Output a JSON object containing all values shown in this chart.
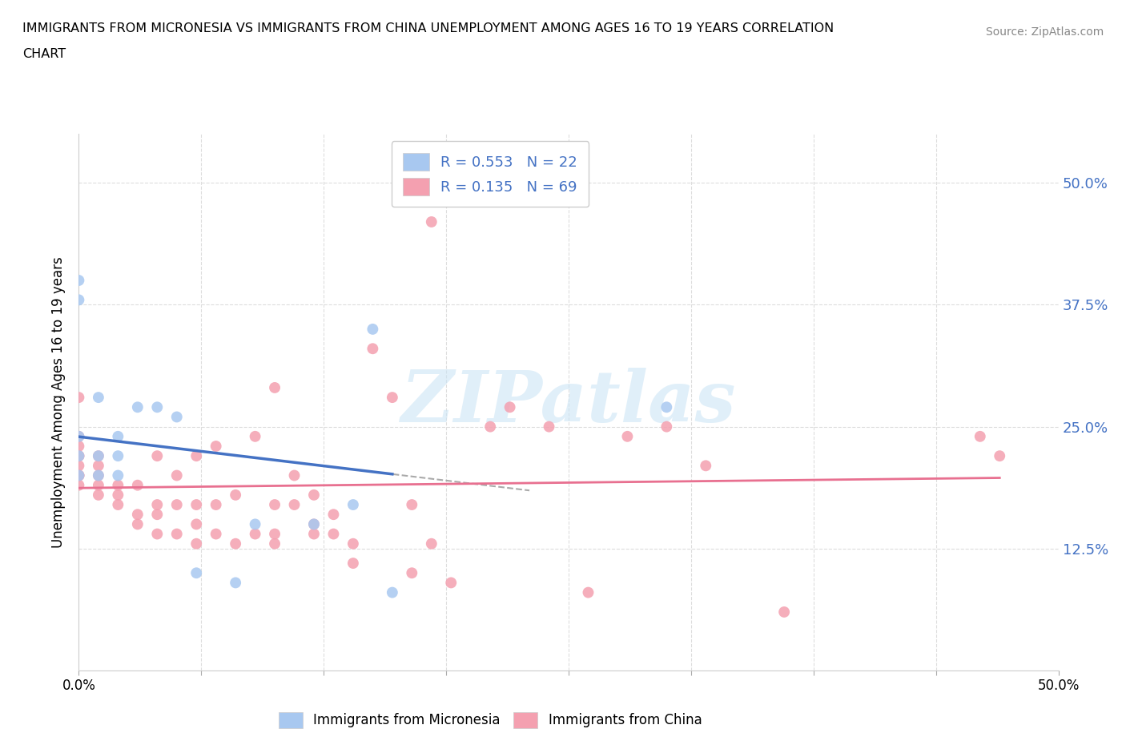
{
  "title_line1": "IMMIGRANTS FROM MICRONESIA VS IMMIGRANTS FROM CHINA UNEMPLOYMENT AMONG AGES 16 TO 19 YEARS CORRELATION",
  "title_line2": "CHART",
  "source_text": "Source: ZipAtlas.com",
  "ylabel": "Unemployment Among Ages 16 to 19 years",
  "xlim": [
    0.0,
    0.5
  ],
  "ylim": [
    0.0,
    0.55
  ],
  "yticks": [
    0.0,
    0.125,
    0.25,
    0.375,
    0.5
  ],
  "ytick_labels": [
    "",
    "12.5%",
    "25.0%",
    "37.5%",
    "50.0%"
  ],
  "xticks": [
    0.0,
    0.0625,
    0.125,
    0.1875,
    0.25,
    0.3125,
    0.375,
    0.4375,
    0.5
  ],
  "xtick_labels": [
    "0.0%",
    "",
    "",
    "",
    "",
    "",
    "",
    "",
    "50.0%"
  ],
  "micronesia_color": "#a8c8f0",
  "china_color": "#f4a0b0",
  "micronesia_line_color": "#4472c4",
  "china_line_color": "#e87090",
  "R_micronesia": 0.553,
  "N_micronesia": 22,
  "R_china": 0.135,
  "N_china": 69,
  "legend_label_micronesia": "Immigrants from Micronesia",
  "legend_label_china": "Immigrants from China",
  "watermark": "ZIPatlas",
  "micronesia_x": [
    0.0,
    0.0,
    0.0,
    0.0,
    0.0,
    0.01,
    0.01,
    0.01,
    0.02,
    0.02,
    0.02,
    0.03,
    0.04,
    0.05,
    0.06,
    0.08,
    0.09,
    0.12,
    0.14,
    0.15,
    0.16,
    0.3
  ],
  "micronesia_y": [
    0.2,
    0.22,
    0.24,
    0.38,
    0.4,
    0.2,
    0.22,
    0.28,
    0.2,
    0.22,
    0.24,
    0.27,
    0.27,
    0.26,
    0.1,
    0.09,
    0.15,
    0.15,
    0.17,
    0.35,
    0.08,
    0.27
  ],
  "china_x": [
    0.0,
    0.0,
    0.0,
    0.0,
    0.0,
    0.0,
    0.0,
    0.0,
    0.0,
    0.0,
    0.01,
    0.01,
    0.01,
    0.01,
    0.01,
    0.02,
    0.02,
    0.02,
    0.03,
    0.03,
    0.03,
    0.04,
    0.04,
    0.04,
    0.04,
    0.05,
    0.05,
    0.05,
    0.06,
    0.06,
    0.06,
    0.06,
    0.07,
    0.07,
    0.07,
    0.08,
    0.08,
    0.09,
    0.09,
    0.1,
    0.1,
    0.1,
    0.1,
    0.11,
    0.11,
    0.12,
    0.12,
    0.12,
    0.13,
    0.13,
    0.14,
    0.14,
    0.15,
    0.16,
    0.17,
    0.17,
    0.18,
    0.18,
    0.19,
    0.21,
    0.22,
    0.24,
    0.26,
    0.28,
    0.3,
    0.32,
    0.36,
    0.46,
    0.47
  ],
  "china_y": [
    0.19,
    0.2,
    0.2,
    0.2,
    0.21,
    0.22,
    0.22,
    0.23,
    0.24,
    0.28,
    0.18,
    0.19,
    0.2,
    0.21,
    0.22,
    0.17,
    0.18,
    0.19,
    0.15,
    0.16,
    0.19,
    0.14,
    0.16,
    0.17,
    0.22,
    0.14,
    0.17,
    0.2,
    0.13,
    0.15,
    0.17,
    0.22,
    0.14,
    0.17,
    0.23,
    0.13,
    0.18,
    0.14,
    0.24,
    0.13,
    0.14,
    0.17,
    0.29,
    0.17,
    0.2,
    0.14,
    0.15,
    0.18,
    0.14,
    0.16,
    0.11,
    0.13,
    0.33,
    0.28,
    0.1,
    0.17,
    0.13,
    0.46,
    0.09,
    0.25,
    0.27,
    0.25,
    0.08,
    0.24,
    0.25,
    0.21,
    0.06,
    0.24,
    0.22
  ]
}
